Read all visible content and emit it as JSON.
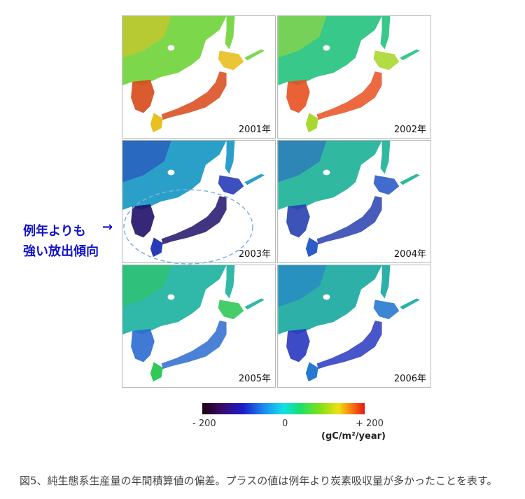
{
  "panels": [
    {
      "year": "2001年",
      "fill": "#7cd84a",
      "accent": "#e8c020",
      "hot": "#d84818"
    },
    {
      "year": "2002年",
      "fill": "#38c88a",
      "accent": "#a8d830",
      "hot": "#e85020"
    },
    {
      "year": "2003年",
      "fill": "#2aa0c8",
      "accent": "#283cb8",
      "hot": "#20106a"
    },
    {
      "year": "2004年",
      "fill": "#30b8a0",
      "accent": "#2c5cc8",
      "hot": "#2840b0"
    },
    {
      "year": "2005年",
      "fill": "#30b8a8",
      "accent": "#30c858",
      "hot": "#2c6cd0"
    },
    {
      "year": "2006年",
      "fill": "#2cb0a8",
      "accent": "#2878d0",
      "hot": "#2838c0"
    }
  ],
  "annotation": {
    "line1": "例年よりも",
    "line2": "強い放出傾向",
    "arrow": "→"
  },
  "colorbar": {
    "min_label": "- 200",
    "mid_label": "0",
    "max_label": "+ 200",
    "unit": "(gC/m²/year)"
  },
  "caption": "図5、純生態系生産量の年間積算値の偏差。プラスの値は例年より炭素吸収量が多かったことを表す。"
}
